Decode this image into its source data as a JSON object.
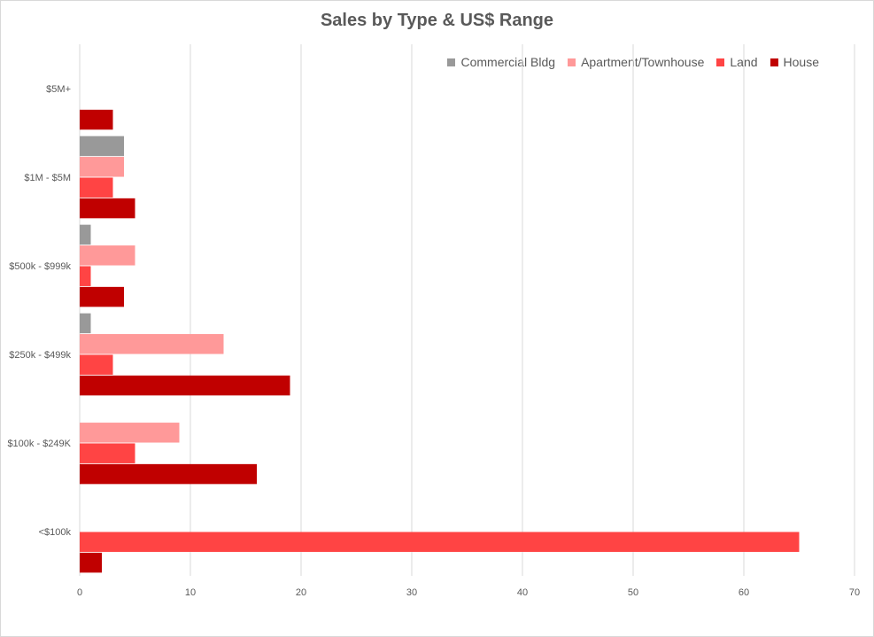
{
  "chart_data": {
    "type": "bar",
    "orientation": "horizontal",
    "title": "Sales by Type & US$ Range",
    "categories": [
      "$5M+",
      "$1M - $5M",
      "$500k - $999k",
      "$250k - $499k",
      "$100k - $249K",
      "<$100k"
    ],
    "series": [
      {
        "name": "Commercial Bldg",
        "color": "#999999",
        "values": [
          0,
          4,
          1,
          1,
          0,
          0
        ]
      },
      {
        "name": "Apartment/Townhouse",
        "color": "#ff9999",
        "values": [
          0,
          4,
          5,
          13,
          9,
          0
        ]
      },
      {
        "name": "Land",
        "color": "#ff4444",
        "values": [
          0,
          3,
          1,
          3,
          5,
          65
        ]
      },
      {
        "name": "House",
        "color": "#c00000",
        "values": [
          3,
          5,
          4,
          19,
          16,
          2
        ]
      }
    ],
    "xlim": [
      0,
      70
    ],
    "xticks": [
      0,
      10,
      20,
      30,
      40,
      50,
      60,
      70
    ],
    "grid": true,
    "legend_position": "top-right"
  }
}
